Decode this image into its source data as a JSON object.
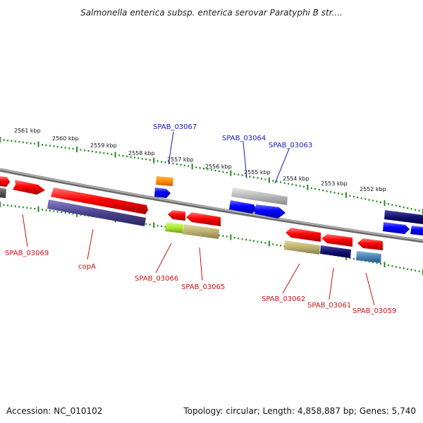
{
  "title": "Salmonella enterica subsp. enterica serovar Paratyphi B str....",
  "footer": {
    "accession": "Accession: NC_010102",
    "info": "Topology: circular; Length: 4,858,887 bp; Genes: 5,740"
  },
  "colors": {
    "backbone": "#8a8a8a",
    "tick": "#1e8a1e",
    "forward_label": "#1a1ab4",
    "reverse_label": "#c81414"
  },
  "kbp_labels": [
    "2561 kbp",
    "2560 kbp",
    "2559 kbp",
    "2558 kbp",
    "2557 kbp",
    "2556 kbp",
    "2555 kbp",
    "2554 kbp",
    "2553 kbp",
    "2552 kbp"
  ],
  "forward_gene_labels": [
    {
      "text": "SPAB_03067"
    },
    {
      "text": "SPAB_03064"
    },
    {
      "text": "SPAB_03063"
    }
  ],
  "reverse_gene_labels": [
    {
      "text": "SPAB_03069"
    },
    {
      "text": "copA"
    },
    {
      "text": "SPAB_03066"
    },
    {
      "text": "SPAB_03065"
    },
    {
      "text": "SPAB_03062"
    },
    {
      "text": "SPAB_03061"
    },
    {
      "text": "SPAB_03059"
    }
  ]
}
